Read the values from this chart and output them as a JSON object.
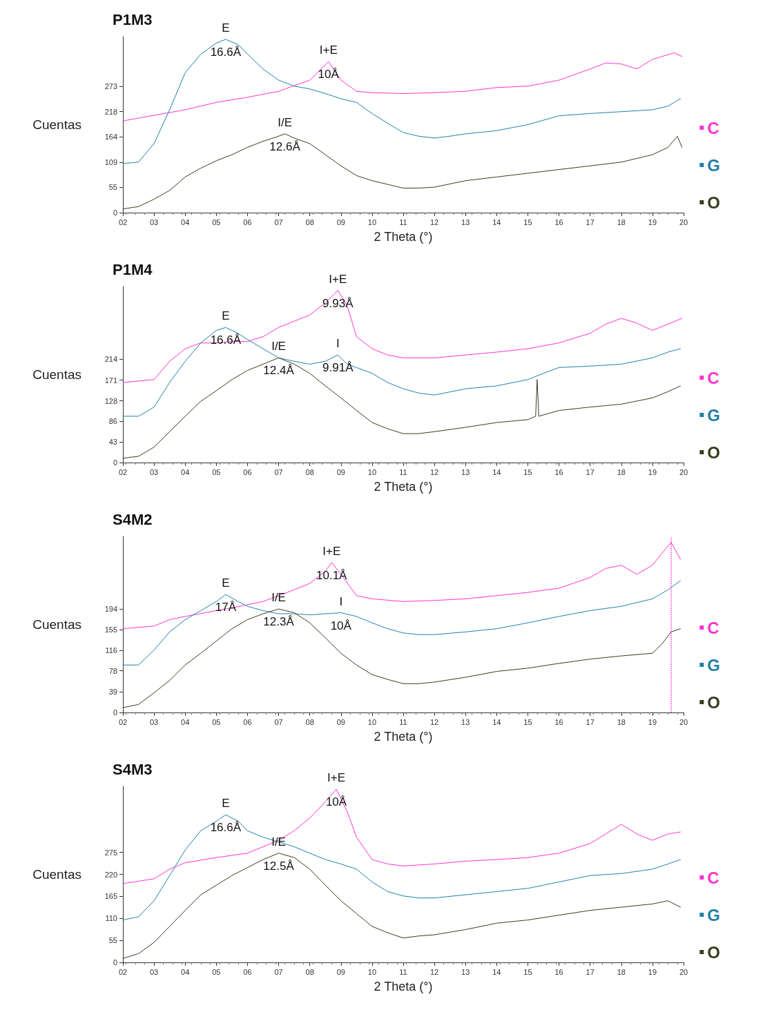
{
  "chart_data": [
    {
      "type": "line",
      "title": "P1M3",
      "xlabel": "2 Theta (°)",
      "ylabel": "Cuentas",
      "xlim": [
        2,
        20
      ],
      "ylim": [
        0,
        380
      ],
      "legend": "right",
      "line_style": "solid",
      "xticks": [
        {
          "value": 2,
          "label": "02"
        },
        {
          "value": 3,
          "label": "03"
        },
        {
          "value": 4,
          "label": "04"
        },
        {
          "value": 5,
          "label": "05"
        },
        {
          "value": 6,
          "label": "06"
        },
        {
          "value": 7,
          "label": "07"
        },
        {
          "value": 8,
          "label": "08"
        },
        {
          "value": 9,
          "label": "09"
        },
        10,
        11,
        12,
        13,
        14,
        15,
        16,
        17,
        18,
        19,
        20
      ],
      "yticks": [
        0,
        55,
        109,
        164,
        218,
        273
      ],
      "annotations": [
        {
          "text": "E",
          "x": 5.3,
          "y": 374
        },
        {
          "text": "16.6Å",
          "x": 5.3,
          "y": 374
        },
        {
          "text": "I+E",
          "x": 8.6,
          "y": 326
        },
        {
          "text": "10Å",
          "x": 8.6,
          "y": 326
        },
        {
          "text": "I/E",
          "x": 7.2,
          "y": 170
        },
        {
          "text": "12.6Å",
          "x": 7.2,
          "y": 170
        }
      ],
      "series": [
        {
          "name": "C",
          "color": "#ff33cc",
          "x": [
            2,
            4,
            5,
            6,
            7,
            8,
            8.6,
            9,
            9.5,
            10,
            11,
            12,
            13,
            14,
            15,
            16,
            17,
            17.5,
            18,
            18.5,
            19,
            19.7,
            19.95
          ],
          "values": [
            198,
            222,
            238,
            249,
            262,
            286,
            326,
            286,
            262,
            259,
            257,
            259,
            262,
            270,
            273,
            286,
            310,
            323,
            321,
            310,
            331,
            345,
            337
          ]
        },
        {
          "name": "G",
          "color": "#1f7fa8",
          "x": [
            2,
            2.5,
            3,
            3.5,
            4,
            4.5,
            5,
            5.3,
            5.7,
            6,
            6.5,
            7,
            7.5,
            8,
            8.5,
            9,
            9.5,
            10,
            10.5,
            11,
            11.5,
            12,
            12.5,
            13,
            14,
            15,
            16,
            17,
            18,
            19,
            19.5,
            19.9
          ],
          "values": [
            106,
            109,
            149,
            222,
            302,
            342,
            366,
            374,
            363,
            342,
            310,
            286,
            273,
            267,
            257,
            246,
            238,
            214,
            193,
            173,
            165,
            161,
            165,
            170,
            177,
            190,
            209,
            214,
            218,
            222,
            230,
            246
          ]
        },
        {
          "name": "O",
          "color": "#3b3b1e",
          "x": [
            2,
            2.5,
            3,
            3.5,
            4,
            4.5,
            5,
            5.5,
            6,
            6.5,
            7,
            7.2,
            7.5,
            8,
            8.5,
            9,
            9.5,
            10,
            10.5,
            11,
            11.5,
            12,
            13,
            14,
            15,
            16,
            17,
            18,
            18.5,
            19,
            19.5,
            19.8,
            19.95
          ],
          "values": [
            8,
            13,
            29,
            48,
            77,
            96,
            112,
            125,
            141,
            154,
            165,
            170,
            161,
            149,
            125,
            101,
            80,
            69,
            61,
            53,
            53,
            55,
            69,
            77,
            85,
            93,
            101,
            109,
            117,
            125,
            141,
            165,
            141
          ]
        }
      ]
    },
    {
      "type": "line",
      "title": "P1M4",
      "xlabel": "2 Theta (°)",
      "ylabel": "Cuentas",
      "xlim": [
        2,
        20
      ],
      "ylim": [
        0,
        365
      ],
      "legend": "right",
      "line_style": "solid",
      "xticks": [
        {
          "value": 2,
          "label": "02"
        },
        {
          "value": 3,
          "label": "03"
        },
        {
          "value": 4,
          "label": "04"
        },
        {
          "value": 5,
          "label": "05"
        },
        {
          "value": 6,
          "label": "06"
        },
        {
          "value": 7,
          "label": "07"
        },
        {
          "value": 8,
          "label": "08"
        },
        {
          "value": 9,
          "label": "09"
        },
        10,
        11,
        12,
        13,
        14,
        15,
        16,
        17,
        18,
        19,
        20
      ],
      "yticks": [
        0,
        43,
        86,
        128,
        171,
        214
      ],
      "annotations": [
        {
          "text": "E",
          "x": 5.3,
          "y": 280
        },
        {
          "text": "16.6Å",
          "x": 5.3,
          "y": 280
        },
        {
          "text": "I+E",
          "x": 8.9,
          "y": 357
        },
        {
          "text": "9.93Å",
          "x": 8.9,
          "y": 357
        },
        {
          "text": "I/E",
          "x": 7,
          "y": 217
        },
        {
          "text": "12.4Å",
          "x": 7,
          "y": 217
        },
        {
          "text": "I",
          "x": 8.9,
          "y": 223
        },
        {
          "text": "9.91Å",
          "x": 8.9,
          "y": 223
        }
      ],
      "series": [
        {
          "name": "C",
          "color": "#ff33cc",
          "x": [
            2,
            3,
            3.5,
            4,
            4.5,
            5,
            5.5,
            6,
            6.5,
            7,
            7.5,
            8,
            8.5,
            8.9,
            9.2,
            9.5,
            10,
            10.5,
            11,
            12,
            13,
            14,
            15,
            16,
            17,
            17.5,
            18,
            18.5,
            19,
            19.5,
            19.95
          ],
          "values": [
            166,
            172,
            210,
            236,
            248,
            248,
            251,
            251,
            261,
            280,
            293,
            306,
            331,
            357,
            325,
            261,
            236,
            223,
            217,
            217,
            223,
            229,
            236,
            248,
            268,
            287,
            299,
            289,
            274,
            287,
            299
          ]
        },
        {
          "name": "G",
          "color": "#1f7fa8",
          "x": [
            2,
            2.5,
            3,
            3.5,
            4,
            4.5,
            5,
            5.3,
            5.7,
            6,
            6.5,
            7,
            7.5,
            8,
            8.5,
            8.9,
            9.2,
            9.5,
            10,
            10.5,
            11,
            11.5,
            12,
            13,
            14,
            15,
            15.5,
            16,
            17,
            18,
            19,
            19.5,
            19.9
          ],
          "values": [
            96,
            96,
            115,
            166,
            210,
            248,
            274,
            280,
            268,
            255,
            236,
            217,
            210,
            204,
            210,
            223,
            204,
            197,
            185,
            166,
            153,
            144,
            140,
            153,
            159,
            172,
            185,
            197,
            200,
            204,
            217,
            229,
            236
          ]
        },
        {
          "name": "O",
          "color": "#3b3b1e",
          "x": [
            2,
            2.5,
            3,
            3.5,
            4,
            4.5,
            5,
            5.5,
            6,
            6.5,
            7,
            7.5,
            8,
            8.5,
            9,
            9.5,
            10,
            10.5,
            11,
            11.5,
            12,
            13,
            14,
            15,
            15.25,
            15.3,
            15.35,
            16,
            17,
            18,
            19,
            19.5,
            19.9
          ],
          "values": [
            9,
            13,
            32,
            64,
            96,
            127,
            149,
            172,
            191,
            204,
            217,
            204,
            185,
            159,
            134,
            108,
            83,
            70,
            60,
            60,
            64,
            73,
            83,
            89,
            96,
            172,
            96,
            108,
            115,
            121,
            134,
            147,
            159
          ]
        }
      ]
    },
    {
      "type": "line",
      "title": "S4M2",
      "xlabel": "2 Theta (°)",
      "ylabel": "Cuentas",
      "xlim": [
        2,
        20
      ],
      "ylim": [
        0,
        330
      ],
      "legend": "right",
      "line_style": "solid",
      "xticks": [
        {
          "value": 2,
          "label": "02"
        },
        {
          "value": 3,
          "label": "03"
        },
        {
          "value": 4,
          "label": "04"
        },
        {
          "value": 5,
          "label": "05"
        },
        {
          "value": 6,
          "label": "06"
        },
        {
          "value": 7,
          "label": "07"
        },
        {
          "value": 8,
          "label": "08"
        },
        {
          "value": 9,
          "label": "09"
        },
        10,
        11,
        12,
        13,
        14,
        15,
        16,
        17,
        18,
        19,
        20
      ],
      "yticks": [
        0,
        39,
        78,
        116,
        155,
        194
      ],
      "ref_lines": [
        {
          "axis": "x",
          "value": 19.6,
          "color": "#ff33cc",
          "line_style": "dotted"
        }
      ],
      "annotations": [
        {
          "text": "E",
          "x": 5.3,
          "y": 221
        },
        {
          "text": "17Å",
          "x": 5.3,
          "y": 221
        },
        {
          "text": "I+E",
          "x": 8.7,
          "y": 281
        },
        {
          "text": "10.1Å",
          "x": 8.7,
          "y": 281
        },
        {
          "text": "I/E",
          "x": 7,
          "y": 194
        },
        {
          "text": "12.3Å",
          "x": 7,
          "y": 194
        },
        {
          "text": "I",
          "x": 9,
          "y": 187
        },
        {
          "text": "10Å",
          "x": 9,
          "y": 187
        }
      ],
      "series": [
        {
          "name": "C",
          "color": "#ff33cc",
          "x": [
            2,
            3,
            3.5,
            4,
            5,
            5.5,
            6,
            6.5,
            7,
            7.5,
            8,
            8.5,
            8.7,
            9,
            9.5,
            10,
            11,
            12,
            13,
            14,
            15,
            16,
            17,
            17.5,
            18,
            18.5,
            19,
            19.3,
            19.6,
            19.9
          ],
          "values": [
            157,
            162,
            174,
            180,
            191,
            196,
            202,
            208,
            219,
            230,
            242,
            265,
            281,
            259,
            219,
            213,
            208,
            210,
            213,
            219,
            225,
            233,
            253,
            270,
            276,
            259,
            276,
            298,
            319,
            287
          ]
        },
        {
          "name": "G",
          "color": "#1f7fa8",
          "x": [
            2,
            2.5,
            3,
            3.5,
            4,
            4.5,
            5,
            5.3,
            5.7,
            6,
            6.5,
            7,
            7.5,
            8,
            8.5,
            9,
            9.5,
            10,
            10.5,
            11,
            11.5,
            12,
            13,
            14,
            15,
            16,
            17,
            18,
            19,
            19.5,
            19.9
          ],
          "values": [
            89,
            89,
            117,
            151,
            174,
            191,
            208,
            221,
            208,
            199,
            191,
            185,
            185,
            183,
            185,
            187,
            180,
            168,
            157,
            149,
            146,
            146,
            151,
            157,
            168,
            180,
            191,
            199,
            213,
            230,
            247
          ]
        },
        {
          "name": "O",
          "color": "#3b3b1e",
          "x": [
            2,
            2.5,
            3,
            3.5,
            4,
            4.5,
            5,
            5.5,
            6,
            6.5,
            7,
            7.5,
            8,
            8.5,
            9,
            9.5,
            10,
            10.5,
            11,
            11.5,
            12,
            13,
            14,
            15,
            16,
            17,
            18,
            19,
            19.3,
            19.6,
            19.9
          ],
          "values": [
            9,
            15,
            37,
            60,
            89,
            111,
            134,
            157,
            174,
            185,
            194,
            187,
            168,
            140,
            111,
            89,
            71,
            62,
            54,
            54,
            57,
            66,
            77,
            83,
            92,
            100,
            106,
            111,
            128,
            151,
            157
          ]
        }
      ]
    },
    {
      "type": "line",
      "title": "S4M3",
      "xlabel": "2 Theta (°)",
      "ylabel": "Cuentas",
      "xlim": [
        2,
        20
      ],
      "ylim": [
        0,
        440
      ],
      "legend": "right",
      "line_style": "solid",
      "xticks": [
        {
          "value": 2,
          "label": "02"
        },
        {
          "value": 3,
          "label": "03"
        },
        {
          "value": 4,
          "label": "04"
        },
        {
          "value": 5,
          "label": "05"
        },
        {
          "value": 6,
          "label": "06"
        },
        {
          "value": 7,
          "label": "07"
        },
        {
          "value": 8,
          "label": "08"
        },
        {
          "value": 9,
          "label": "09"
        },
        10,
        11,
        12,
        13,
        14,
        15,
        16,
        17,
        18,
        19,
        20
      ],
      "yticks": [
        0,
        55,
        110,
        165,
        220,
        275
      ],
      "annotations": [
        {
          "text": "E",
          "x": 5.3,
          "y": 369
        },
        {
          "text": "16.6Å",
          "x": 5.3,
          "y": 369
        },
        {
          "text": "I+E",
          "x": 8.85,
          "y": 433
        },
        {
          "text": "10Å",
          "x": 8.85,
          "y": 433
        },
        {
          "text": "I/E",
          "x": 7,
          "y": 273
        },
        {
          "text": "12.5Å",
          "x": 7,
          "y": 273
        }
      ],
      "series": [
        {
          "name": "C",
          "color": "#ff33cc",
          "x": [
            2,
            3,
            3.5,
            4,
            5,
            6,
            6.5,
            7,
            7.5,
            8,
            8.5,
            8.85,
            9.2,
            9.5,
            10,
            10.5,
            11,
            12,
            13,
            14,
            15,
            16,
            17,
            17.5,
            18,
            18.5,
            19,
            19.5,
            19.9
          ],
          "values": [
            197,
            209,
            233,
            249,
            262,
            273,
            289,
            305,
            329,
            361,
            401,
            433,
            377,
            313,
            257,
            246,
            241,
            246,
            253,
            257,
            262,
            273,
            297,
            321,
            345,
            321,
            305,
            321,
            326
          ]
        },
        {
          "name": "G",
          "color": "#1f7fa8",
          "x": [
            2,
            2.5,
            3,
            3.5,
            4,
            4.5,
            5,
            5.3,
            5.7,
            6,
            6.5,
            7,
            7.5,
            8,
            8.5,
            9,
            9.5,
            10,
            10.5,
            11,
            11.5,
            12,
            13,
            14,
            15,
            16,
            17,
            18,
            19,
            19.5,
            19.9
          ],
          "values": [
            106,
            114,
            154,
            217,
            281,
            329,
            353,
            369,
            353,
            329,
            313,
            301,
            289,
            273,
            257,
            246,
            233,
            201,
            177,
            166,
            161,
            161,
            169,
            177,
            185,
            201,
            217,
            222,
            233,
            246,
            257
          ]
        },
        {
          "name": "O",
          "color": "#3b3b1e",
          "x": [
            2,
            2.5,
            3,
            3.5,
            4,
            4.5,
            5,
            5.5,
            6,
            6.5,
            7,
            7.5,
            8,
            8.5,
            9,
            9.5,
            10,
            10.5,
            11,
            11.5,
            12,
            13,
            14,
            15,
            16,
            17,
            18,
            19,
            19.5,
            19.9
          ],
          "values": [
            10,
            22,
            50,
            90,
            130,
            169,
            193,
            217,
            237,
            257,
            273,
            262,
            233,
            193,
            154,
            122,
            90,
            74,
            61,
            66,
            69,
            82,
            98,
            106,
            118,
            130,
            138,
            146,
            154,
            138
          ]
        }
      ]
    }
  ]
}
